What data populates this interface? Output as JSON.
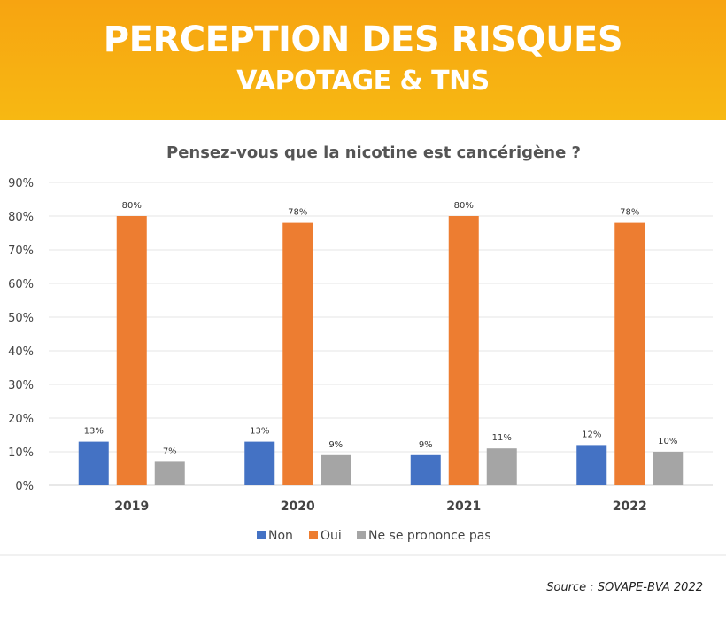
{
  "header": {
    "title": "PERCEPTION DES RISQUES",
    "subtitle": "VAPOTAGE & TNS"
  },
  "colors": {
    "banner": "#f7a411",
    "non": "#4472c4",
    "oui": "#ed7d31",
    "nsp": "#a5a5a5",
    "grid": "#e6e6e6"
  },
  "chart_data": {
    "type": "bar",
    "title": "Pensez-vous que la nicotine est cancérigène ?",
    "categories": [
      "2019",
      "2020",
      "2021",
      "2022"
    ],
    "series": [
      {
        "name": "Non",
        "values": [
          13,
          13,
          9,
          12
        ],
        "labels": [
          "13%",
          "13%",
          "9%",
          "12%"
        ]
      },
      {
        "name": "Oui",
        "values": [
          80,
          78,
          80,
          78
        ],
        "labels": [
          "80%",
          "78%",
          "80%",
          "78%"
        ]
      },
      {
        "name": "Ne se prononce pas",
        "values": [
          7,
          9,
          11,
          10
        ],
        "labels": [
          "7%",
          "9%",
          "11%",
          "10%"
        ]
      }
    ],
    "ylim": [
      0,
      90
    ],
    "yticks": [
      "0%",
      "10%",
      "20%",
      "30%",
      "40%",
      "50%",
      "60%",
      "70%",
      "80%",
      "90%"
    ],
    "grid": true,
    "legend": "bottom"
  },
  "source": "Source : SOVAPE-BVA 2022"
}
